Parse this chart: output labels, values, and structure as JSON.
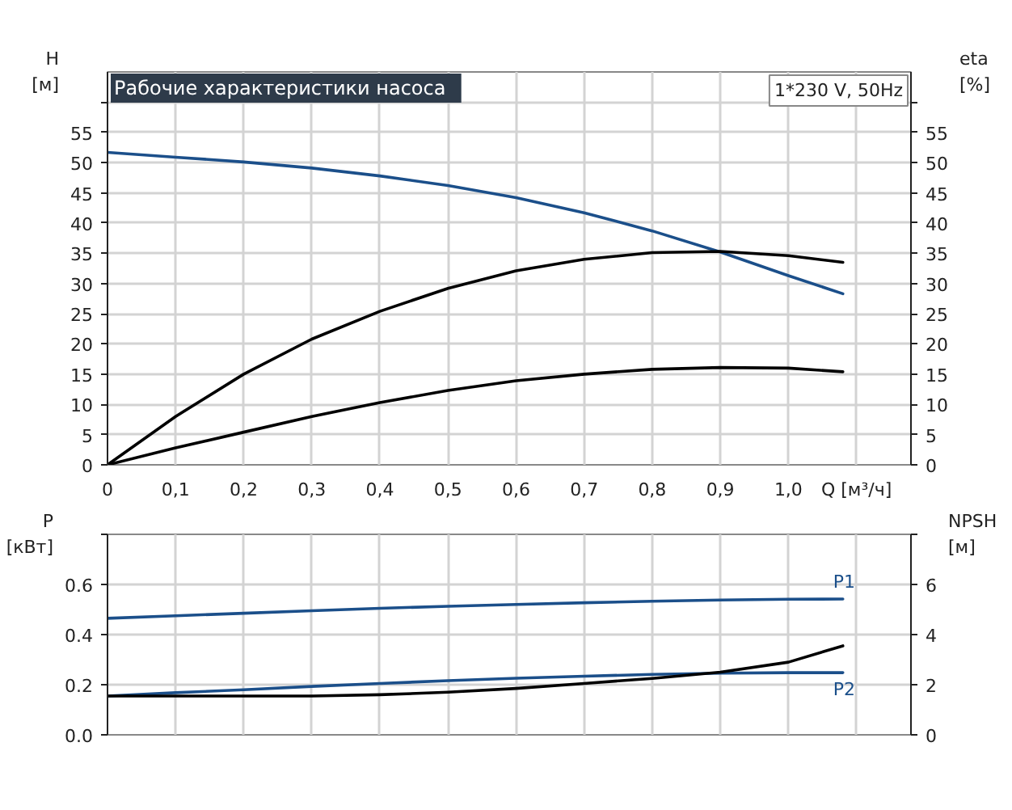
{
  "chart_data": [
    {
      "type": "line",
      "title": "Рабочие характеристики насоса",
      "annotations": [
        "1*230 V, 50Hz"
      ],
      "xlabel": "Q [м³/ч]",
      "ylabel": "H\n[м]",
      "y2label": "eta\n[%]",
      "grid": true,
      "xlim": [
        0,
        1.18
      ],
      "xticks": [
        0,
        {
          "value": 0.1,
          "label": "0,1"
        },
        {
          "value": 0.2,
          "label": "0,2"
        },
        {
          "value": 0.3,
          "label": "0,3"
        },
        {
          "value": 0.4,
          "label": "0,4"
        },
        {
          "value": 0.5,
          "label": "0,5"
        },
        {
          "value": 0.6,
          "label": "0,6"
        },
        {
          "value": 0.7,
          "label": "0,7"
        },
        {
          "value": 0.8,
          "label": "0,8"
        },
        {
          "value": 0.9,
          "label": "0,9"
        },
        {
          "value": 1.0,
          "label": "1,0"
        },
        {
          "value": 1.1,
          "label": null
        }
      ],
      "ylim": [
        0,
        65
      ],
      "yticks": [
        0,
        5,
        10,
        15,
        20,
        25,
        30,
        35,
        40,
        45,
        50,
        55,
        {
          "value": 60,
          "label": null
        }
      ],
      "y2lim": [
        0,
        65
      ],
      "y2ticks": [
        0,
        5,
        10,
        15,
        20,
        25,
        30,
        35,
        40,
        45,
        50,
        55,
        {
          "value": 60,
          "label": null
        }
      ],
      "x": [
        0,
        0.1,
        0.2,
        0.3,
        0.4,
        0.5,
        0.6,
        0.7,
        0.8,
        0.9,
        1.0,
        1.08
      ],
      "series": [
        {
          "color": "#1b4f8a",
          "values": [
            51.7,
            50.9,
            50.1,
            49.1,
            47.8,
            46.2,
            44.2,
            41.7,
            38.7,
            35.2,
            31.3,
            28.3
          ]
        },
        {
          "color": "#000000",
          "axis": "y2",
          "values": [
            0,
            8,
            15,
            20.8,
            25.4,
            29.2,
            32.1,
            34,
            35.1,
            35.3,
            34.6,
            33.5
          ]
        },
        {
          "color": "#000000",
          "axis": "y2",
          "values": [
            0,
            2.8,
            5.4,
            8.0,
            10.3,
            12.3,
            13.9,
            15.0,
            15.8,
            16.1,
            16.0,
            15.4
          ]
        }
      ]
    },
    {
      "type": "line",
      "ylabel": "P\n[кВт]",
      "y2label": "NPSH\n[м]",
      "grid": true,
      "tick_labels": "y",
      "xlim": [
        0,
        1.18
      ],
      "xticks": [
        0,
        0.1,
        0.2,
        0.3,
        0.4,
        0.5,
        0.6,
        0.7,
        0.8,
        0.9,
        1.0,
        1.1
      ],
      "ylim": [
        0,
        0.8
      ],
      "yticks": [
        {
          "value": 0,
          "label": "0.0"
        },
        0.2,
        0.4,
        0.6,
        {
          "value": 0.8,
          "label": null
        }
      ],
      "y2lim": [
        0,
        8
      ],
      "y2ticks": [
        0,
        2,
        4,
        6,
        {
          "value": 8,
          "label": null
        }
      ],
      "x": [
        0,
        0.1,
        0.2,
        0.3,
        0.4,
        0.5,
        0.6,
        0.7,
        0.8,
        0.9,
        1.0,
        1.08
      ],
      "series": [
        {
          "name": "P1",
          "color": "#1b4f8a",
          "values": [
            0.465,
            0.475,
            0.485,
            0.495,
            0.505,
            0.513,
            0.52,
            0.527,
            0.533,
            0.538,
            0.541,
            0.542
          ]
        },
        {
          "name": "P2",
          "color": "#1b4f8a",
          "values": [
            0.155,
            0.168,
            0.18,
            0.193,
            0.205,
            0.216,
            0.226,
            0.234,
            0.241,
            0.246,
            0.248,
            0.248
          ]
        },
        {
          "color": "#000000",
          "axis": "y2",
          "values": [
            1.55,
            1.55,
            1.55,
            1.55,
            1.6,
            1.7,
            1.85,
            2.05,
            2.25,
            2.5,
            2.9,
            3.55
          ]
        }
      ]
    }
  ]
}
